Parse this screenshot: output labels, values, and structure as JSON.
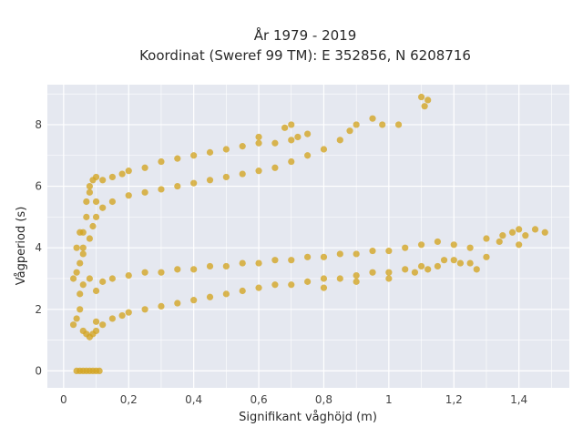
{
  "chart_data": {
    "type": "scatter",
    "title": "År 1979 - 2019",
    "subtitle": "Koordinat (Sweref 99 TM): E 352856, N 6208716",
    "xlabel": "Signifikant våghöjd (m)",
    "ylabel": "Vågperiod (s)",
    "xlim": [
      -0.05,
      1.555
    ],
    "ylim": [
      -0.55,
      9.3
    ],
    "x_ticks": [
      0,
      0.2,
      0.4,
      0.6,
      0.8,
      1,
      1.2,
      1.4
    ],
    "x_tick_labels": [
      "0",
      "0,2",
      "0,4",
      "0,6",
      "0,8",
      "1",
      "1,2",
      "1,4"
    ],
    "y_ticks": [
      0,
      2,
      4,
      6,
      8
    ],
    "y_tick_labels": [
      "0",
      "2",
      "4",
      "6",
      "8"
    ],
    "grid": true,
    "legend": "none",
    "colors": {
      "marker": "#d4a420",
      "plot_background": "#e5e8f0",
      "grid": "#ffffff"
    },
    "clusters": [
      {
        "points": [
          [
            0.04,
            0.0
          ],
          [
            0.05,
            0.0
          ],
          [
            0.06,
            0.0
          ],
          [
            0.07,
            0.0
          ],
          [
            0.08,
            0.0
          ],
          [
            0.09,
            0.0
          ],
          [
            0.1,
            0.0
          ],
          [
            0.11,
            0.0
          ]
        ]
      },
      {
        "points": [
          [
            0.03,
            1.5
          ],
          [
            0.04,
            1.7
          ],
          [
            0.05,
            2.0
          ],
          [
            0.06,
            1.3
          ],
          [
            0.07,
            1.2
          ],
          [
            0.08,
            1.1
          ],
          [
            0.09,
            1.2
          ],
          [
            0.1,
            1.3
          ],
          [
            0.1,
            1.6
          ],
          [
            0.12,
            1.5
          ],
          [
            0.15,
            1.7
          ],
          [
            0.18,
            1.8
          ],
          [
            0.2,
            1.9
          ],
          [
            0.25,
            2.0
          ],
          [
            0.3,
            2.1
          ],
          [
            0.35,
            2.2
          ],
          [
            0.4,
            2.3
          ],
          [
            0.45,
            2.4
          ],
          [
            0.5,
            2.5
          ],
          [
            0.55,
            2.6
          ],
          [
            0.6,
            2.7
          ],
          [
            0.65,
            2.8
          ],
          [
            0.7,
            2.8
          ],
          [
            0.75,
            2.9
          ],
          [
            0.8,
            3.0
          ],
          [
            0.85,
            3.0
          ],
          [
            0.9,
            3.1
          ],
          [
            0.95,
            3.2
          ],
          [
            1.0,
            3.2
          ],
          [
            1.05,
            3.3
          ],
          [
            1.1,
            3.4
          ],
          [
            1.15,
            3.4
          ],
          [
            0.05,
            2.5
          ],
          [
            0.06,
            2.8
          ],
          [
            0.08,
            3.0
          ],
          [
            0.1,
            2.6
          ],
          [
            0.12,
            2.9
          ],
          [
            0.15,
            3.0
          ],
          [
            0.2,
            3.1
          ],
          [
            0.25,
            3.2
          ],
          [
            0.3,
            3.2
          ],
          [
            0.35,
            3.3
          ],
          [
            0.4,
            3.3
          ],
          [
            0.45,
            3.4
          ],
          [
            0.5,
            3.4
          ],
          [
            0.55,
            3.5
          ],
          [
            0.6,
            3.5
          ],
          [
            0.65,
            3.6
          ],
          [
            0.7,
            3.6
          ],
          [
            0.75,
            3.7
          ],
          [
            0.8,
            3.7
          ],
          [
            0.85,
            3.8
          ],
          [
            0.9,
            3.8
          ],
          [
            0.95,
            3.9
          ],
          [
            1.0,
            3.9
          ],
          [
            1.05,
            4.0
          ],
          [
            1.1,
            4.1
          ],
          [
            1.15,
            4.2
          ],
          [
            1.2,
            4.1
          ],
          [
            1.25,
            4.0
          ],
          [
            1.2,
            3.6
          ],
          [
            1.25,
            3.5
          ],
          [
            1.3,
            3.7
          ],
          [
            1.3,
            4.3
          ],
          [
            1.35,
            4.4
          ],
          [
            1.38,
            4.5
          ],
          [
            1.4,
            4.6
          ],
          [
            1.42,
            4.4
          ],
          [
            1.45,
            4.6
          ],
          [
            1.48,
            4.5
          ],
          [
            1.34,
            4.2
          ],
          [
            1.4,
            4.1
          ],
          [
            1.27,
            3.3
          ],
          [
            1.22,
            3.5
          ],
          [
            1.17,
            3.6
          ],
          [
            1.12,
            3.3
          ],
          [
            1.08,
            3.2
          ],
          [
            1.0,
            3.0
          ],
          [
            0.9,
            2.9
          ],
          [
            0.8,
            2.7
          ]
        ]
      },
      {
        "points": [
          [
            0.03,
            3.0
          ],
          [
            0.04,
            3.2
          ],
          [
            0.05,
            3.5
          ],
          [
            0.06,
            4.0
          ],
          [
            0.06,
            4.5
          ],
          [
            0.07,
            5.0
          ],
          [
            0.07,
            5.5
          ],
          [
            0.08,
            5.8
          ],
          [
            0.08,
            6.0
          ],
          [
            0.09,
            6.2
          ],
          [
            0.1,
            6.3
          ],
          [
            0.12,
            6.2
          ],
          [
            0.15,
            6.3
          ],
          [
            0.18,
            6.4
          ],
          [
            0.2,
            6.5
          ],
          [
            0.25,
            6.6
          ],
          [
            0.3,
            6.8
          ],
          [
            0.35,
            6.9
          ],
          [
            0.4,
            7.0
          ],
          [
            0.45,
            7.1
          ],
          [
            0.5,
            7.2
          ],
          [
            0.55,
            7.3
          ],
          [
            0.6,
            7.4
          ],
          [
            0.65,
            7.4
          ],
          [
            0.7,
            7.5
          ],
          [
            0.72,
            7.6
          ],
          [
            0.75,
            7.7
          ],
          [
            0.1,
            5.5
          ],
          [
            0.12,
            5.3
          ],
          [
            0.15,
            5.5
          ],
          [
            0.2,
            5.7
          ],
          [
            0.25,
            5.8
          ],
          [
            0.3,
            5.9
          ],
          [
            0.35,
            6.0
          ],
          [
            0.4,
            6.1
          ],
          [
            0.45,
            6.2
          ],
          [
            0.5,
            6.3
          ],
          [
            0.55,
            6.4
          ],
          [
            0.6,
            6.5
          ],
          [
            0.65,
            6.6
          ],
          [
            0.7,
            6.8
          ],
          [
            0.75,
            7.0
          ],
          [
            0.8,
            7.2
          ],
          [
            0.85,
            7.5
          ],
          [
            0.88,
            7.8
          ],
          [
            0.9,
            8.0
          ],
          [
            0.95,
            8.2
          ],
          [
            0.98,
            8.0
          ],
          [
            1.03,
            8.0
          ],
          [
            1.1,
            8.9
          ],
          [
            1.12,
            8.8
          ],
          [
            1.11,
            8.6
          ],
          [
            0.68,
            7.9
          ],
          [
            0.7,
            8.0
          ],
          [
            0.6,
            7.6
          ],
          [
            0.05,
            4.5
          ],
          [
            0.04,
            4.0
          ],
          [
            0.06,
            3.8
          ],
          [
            0.08,
            4.3
          ],
          [
            0.09,
            4.7
          ],
          [
            0.1,
            5.0
          ]
        ]
      }
    ]
  }
}
